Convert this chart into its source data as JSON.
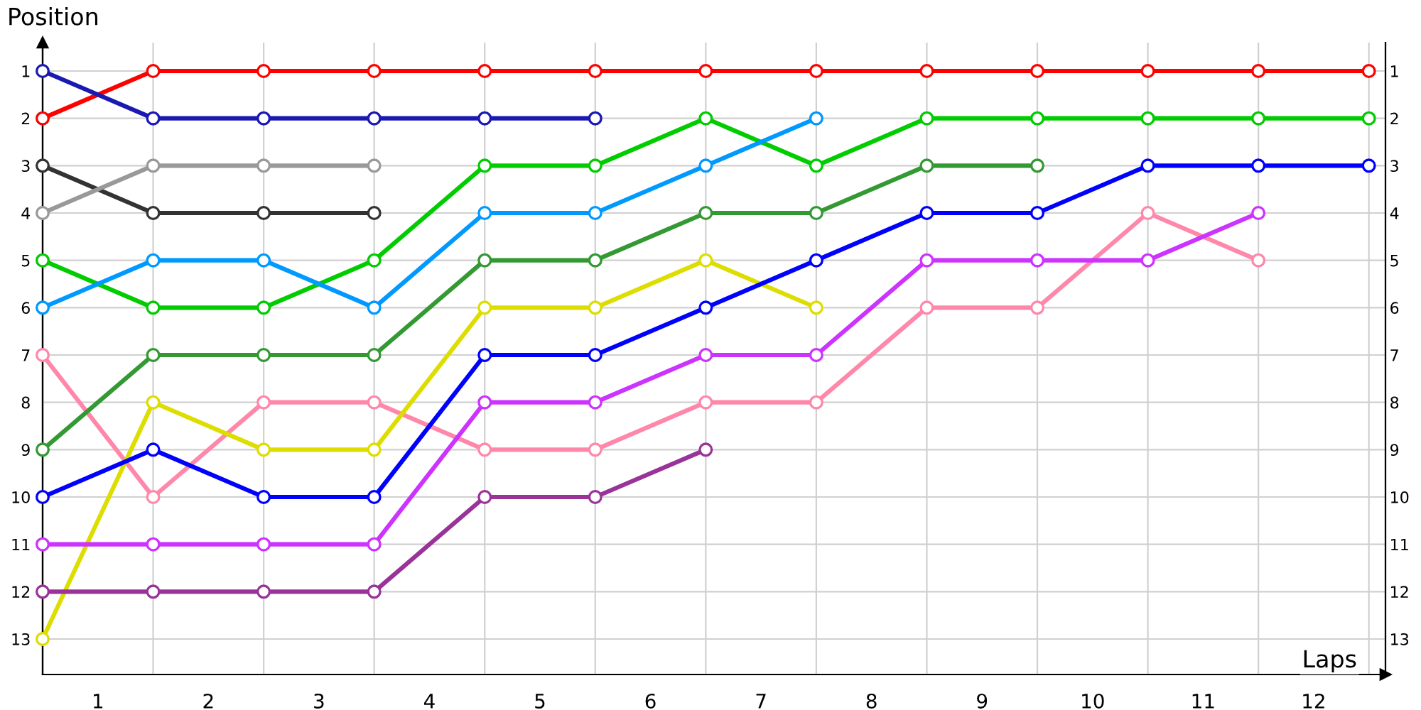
{
  "chart_data": {
    "type": "line",
    "xlabel": "Laps",
    "ylabel": "Position",
    "marker": "circle",
    "grid": true,
    "x": [
      0,
      1,
      2,
      3,
      4,
      5,
      6,
      7,
      8,
      9,
      10,
      11,
      12
    ],
    "xlim": [
      0,
      12.15
    ],
    "xticks": [
      {
        "value": 0,
        "label": null
      },
      {
        "value": 0.5,
        "label": "1"
      },
      {
        "value": 1,
        "label": null
      },
      {
        "value": 1.5,
        "label": "2"
      },
      {
        "value": 2,
        "label": null
      },
      {
        "value": 2.5,
        "label": "3"
      },
      {
        "value": 3,
        "label": null
      },
      {
        "value": 3.5,
        "label": "4"
      },
      {
        "value": 4,
        "label": null
      },
      {
        "value": 4.5,
        "label": "5"
      },
      {
        "value": 5,
        "label": null
      },
      {
        "value": 5.5,
        "label": "6"
      },
      {
        "value": 6,
        "label": null
      },
      {
        "value": 6.5,
        "label": "7"
      },
      {
        "value": 7,
        "label": null
      },
      {
        "value": 7.5,
        "label": "8"
      },
      {
        "value": 8,
        "label": null
      },
      {
        "value": 8.5,
        "label": "9"
      },
      {
        "value": 9,
        "label": null
      },
      {
        "value": 9.5,
        "label": "10"
      },
      {
        "value": 10,
        "label": null
      },
      {
        "value": 10.5,
        "label": "11"
      },
      {
        "value": 11,
        "label": null
      },
      {
        "value": 11.5,
        "label": "12"
      },
      {
        "value": 12,
        "label": null
      }
    ],
    "ylim": [
      13.75,
      0.4
    ],
    "yticks": [
      1,
      2,
      3,
      4,
      5,
      6,
      7,
      8,
      9,
      10,
      11,
      12,
      13
    ],
    "y2lim": [
      13.75,
      0.4
    ],
    "y2ticks": [
      1,
      2,
      3,
      4,
      5,
      6,
      7,
      8,
      9,
      10,
      11,
      12,
      13
    ],
    "series": [
      {
        "color": "#ff0000",
        "values": [
          2,
          1,
          1,
          1,
          1,
          1,
          1,
          1,
          1,
          1,
          1,
          1,
          1
        ]
      },
      {
        "color": "#1a1ab3",
        "values": [
          1,
          2,
          2,
          2,
          2,
          2,
          null,
          null,
          null,
          null,
          null,
          null,
          null
        ]
      },
      {
        "color": "#333333",
        "values": [
          3,
          4,
          4,
          4,
          null,
          null,
          null,
          null,
          null,
          null,
          null,
          null,
          null
        ]
      },
      {
        "color": "#999999",
        "values": [
          4,
          3,
          3,
          3,
          null,
          null,
          null,
          null,
          null,
          null,
          null,
          null,
          null
        ]
      },
      {
        "color": "#00cc00",
        "values": [
          5,
          6,
          6,
          5,
          3,
          3,
          2,
          3,
          2,
          2,
          2,
          2,
          2
        ]
      },
      {
        "color": "#0099ff",
        "values": [
          6,
          5,
          5,
          6,
          4,
          4,
          3,
          2,
          null,
          null,
          null,
          null,
          null
        ]
      },
      {
        "color": "#ff88aa",
        "values": [
          7,
          10,
          8,
          8,
          9,
          9,
          8,
          8,
          6,
          6,
          4,
          5,
          null
        ]
      },
      {
        "color": "#339933",
        "values": [
          9,
          7,
          7,
          7,
          5,
          5,
          4,
          4,
          3,
          3,
          null,
          null,
          null
        ]
      },
      {
        "color": "#dddd00",
        "values": [
          13,
          8,
          9,
          9,
          6,
          6,
          5,
          6,
          null,
          null,
          null,
          null,
          null
        ]
      },
      {
        "color": "#0000ff",
        "values": [
          10,
          9,
          10,
          10,
          7,
          7,
          6,
          5,
          4,
          4,
          3,
          3,
          3
        ]
      },
      {
        "color": "#cc33ff",
        "values": [
          11,
          11,
          11,
          11,
          8,
          8,
          7,
          7,
          5,
          5,
          5,
          4,
          null
        ]
      },
      {
        "color": "#993399",
        "values": [
          12,
          12,
          12,
          12,
          10,
          10,
          9,
          null,
          null,
          null,
          null,
          null,
          null
        ]
      }
    ]
  }
}
